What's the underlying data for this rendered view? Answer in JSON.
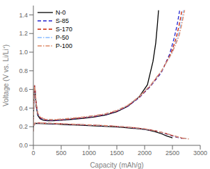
{
  "chart_data": {
    "type": "line",
    "title": "",
    "xlabel": "Capacity (mAh/g)",
    "ylabel": "Voltage (V vs. Li/Li⁺)",
    "xlim": [
      0,
      3000
    ],
    "ylim": [
      0.0,
      1.5
    ],
    "xticks": [
      0,
      500,
      1000,
      1500,
      2000,
      2500,
      3000
    ],
    "yticks": [
      {
        "value": 0.0,
        "label": "0.0"
      },
      0.2,
      0.4,
      0.6,
      0.8,
      {
        "value": 1.0,
        "label": "1.0"
      },
      1.2,
      1.4
    ],
    "grid": false,
    "legend": "upper left",
    "series": [
      {
        "name": "N-0",
        "color": "#000000",
        "line_style": "solid",
        "segments": [
          {
            "x": [
              0,
              10,
              20,
              35,
              50,
              80,
              120,
              180,
              250,
              350,
              500,
              700,
              900,
              1100,
              1300,
              1500,
              1700,
              1900,
              2050,
              2150,
              2200,
              2230,
              2250
            ],
            "values": [
              0.15,
              0.58,
              0.62,
              0.55,
              0.42,
              0.32,
              0.285,
              0.27,
              0.265,
              0.265,
              0.27,
              0.28,
              0.29,
              0.305,
              0.325,
              0.36,
              0.42,
              0.52,
              0.65,
              0.9,
              1.1,
              1.3,
              1.45
            ]
          },
          {
            "x": [
              0,
              30,
              100,
              200,
              400,
              600,
              800,
              1000,
              1200,
              1400,
              1600,
              1800,
              2000,
              2100,
              2200,
              2300,
              2400,
              2450,
              2480,
              2500
            ],
            "values": [
              0.21,
              0.235,
              0.235,
              0.232,
              0.228,
              0.222,
              0.217,
              0.212,
              0.207,
              0.2,
              0.193,
              0.183,
              0.17,
              0.16,
              0.145,
              0.125,
              0.1,
              0.09,
              0.085,
              0.08
            ]
          }
        ]
      },
      {
        "name": "S-85",
        "color": "#2222cc",
        "line_style": "dashed",
        "segments": [
          {
            "x": [
              0,
              10,
              20,
              35,
              50,
              80,
              120,
              180,
              250,
              350,
              500,
              700,
              900,
              1100,
              1300,
              1500,
              1700,
              1900,
              2100,
              2300,
              2450,
              2530,
              2580,
              2610,
              2630
            ],
            "values": [
              0.15,
              0.6,
              0.64,
              0.57,
              0.44,
              0.335,
              0.295,
              0.275,
              0.268,
              0.267,
              0.272,
              0.283,
              0.295,
              0.31,
              0.33,
              0.365,
              0.42,
              0.51,
              0.63,
              0.78,
              0.98,
              1.15,
              1.28,
              1.38,
              1.45
            ]
          },
          {
            "x": [
              0,
              30,
              100,
              200,
              400,
              600,
              800,
              1000,
              1200,
              1400,
              1600,
              1800,
              2000,
              2200,
              2350,
              2480,
              2570,
              2620,
              2650,
              2680
            ],
            "values": [
              0.21,
              0.238,
              0.238,
              0.236,
              0.232,
              0.227,
              0.222,
              0.217,
              0.212,
              0.206,
              0.198,
              0.188,
              0.175,
              0.155,
              0.13,
              0.105,
              0.088,
              0.082,
              0.078,
              0.075
            ]
          }
        ]
      },
      {
        "name": "S-170",
        "color": "#cc2200",
        "line_style": "dashed",
        "segments": [
          {
            "x": [
              0,
              10,
              20,
              35,
              50,
              80,
              120,
              180,
              250,
              350,
              500,
              700,
              900,
              1100,
              1300,
              1500,
              1700,
              1900,
              2100,
              2300,
              2480,
              2570,
              2620,
              2650,
              2670
            ],
            "values": [
              0.15,
              0.6,
              0.645,
              0.575,
              0.445,
              0.34,
              0.3,
              0.28,
              0.272,
              0.27,
              0.275,
              0.286,
              0.298,
              0.313,
              0.333,
              0.368,
              0.425,
              0.515,
              0.635,
              0.79,
              0.995,
              1.16,
              1.29,
              1.38,
              1.45
            ]
          },
          {
            "x": [
              0,
              30,
              100,
              200,
              400,
              600,
              800,
              1000,
              1200,
              1400,
              1600,
              1800,
              2000,
              2200,
              2380,
              2520,
              2610,
              2660,
              2700,
              2730
            ],
            "values": [
              0.21,
              0.239,
              0.239,
              0.237,
              0.233,
              0.228,
              0.223,
              0.218,
              0.213,
              0.207,
              0.199,
              0.189,
              0.176,
              0.155,
              0.128,
              0.1,
              0.085,
              0.079,
              0.075,
              0.072
            ]
          }
        ]
      },
      {
        "name": "P-50",
        "color": "#88bbff",
        "line_style": "dashdot",
        "segments": [
          {
            "x": [
              0,
              10,
              20,
              35,
              50,
              80,
              120,
              180,
              250,
              350,
              500,
              700,
              900,
              1100,
              1300,
              1500,
              1700,
              1900,
              2100,
              2300,
              2500,
              2600,
              2650,
              2680,
              2700
            ],
            "values": [
              0.15,
              0.6,
              0.645,
              0.58,
              0.45,
              0.345,
              0.305,
              0.285,
              0.277,
              0.275,
              0.28,
              0.291,
              0.303,
              0.318,
              0.338,
              0.373,
              0.43,
              0.52,
              0.64,
              0.795,
              1.0,
              1.17,
              1.3,
              1.39,
              1.45
            ]
          },
          {
            "x": [
              0,
              30,
              100,
              200,
              400,
              600,
              800,
              1000,
              1200,
              1400,
              1600,
              1800,
              2000,
              2200,
              2400,
              2560,
              2650,
              2710,
              2750,
              2780
            ],
            "values": [
              0.21,
              0.24,
              0.24,
              0.238,
              0.234,
              0.229,
              0.224,
              0.219,
              0.214,
              0.208,
              0.2,
              0.19,
              0.177,
              0.155,
              0.125,
              0.097,
              0.082,
              0.076,
              0.072,
              0.069
            ]
          }
        ]
      },
      {
        "name": "P-100",
        "color": "#dd8866",
        "line_style": "dashdot",
        "segments": [
          {
            "x": [
              0,
              10,
              20,
              35,
              50,
              80,
              120,
              180,
              250,
              350,
              500,
              700,
              900,
              1100,
              1300,
              1500,
              1700,
              1900,
              2100,
              2300,
              2500,
              2620,
              2670,
              2700,
              2720
            ],
            "values": [
              0.15,
              0.6,
              0.645,
              0.58,
              0.452,
              0.347,
              0.307,
              0.287,
              0.279,
              0.277,
              0.282,
              0.293,
              0.305,
              0.32,
              0.34,
              0.375,
              0.432,
              0.522,
              0.642,
              0.797,
              1.002,
              1.175,
              1.305,
              1.395,
              1.45
            ]
          },
          {
            "x": [
              0,
              30,
              100,
              200,
              400,
              600,
              800,
              1000,
              1200,
              1400,
              1600,
              1800,
              2000,
              2200,
              2400,
              2580,
              2670,
              2730,
              2770,
              2800
            ],
            "values": [
              0.21,
              0.241,
              0.241,
              0.239,
              0.235,
              0.23,
              0.225,
              0.22,
              0.215,
              0.209,
              0.201,
              0.191,
              0.178,
              0.156,
              0.124,
              0.095,
              0.08,
              0.074,
              0.07,
              0.067
            ]
          }
        ]
      }
    ]
  }
}
